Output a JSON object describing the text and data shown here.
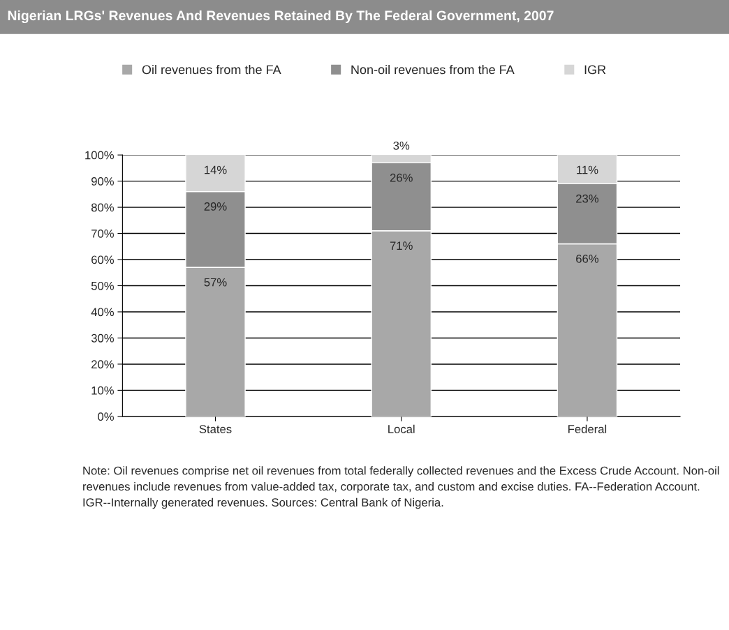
{
  "chart_data": {
    "type": "bar",
    "stacked": true,
    "title": "Nigerian LRGs' Revenues And Revenues Retained By The Federal Government, 2007",
    "categories": [
      "States",
      "Local",
      "Federal"
    ],
    "series": [
      {
        "name": "Oil revenues from the FA",
        "color": "#a8a8a8",
        "values": [
          57,
          71,
          66
        ],
        "value_labels": [
          "57%",
          "71%",
          "66%"
        ]
      },
      {
        "name": "Non-oil revenues from the FA",
        "color": "#8f8f8f",
        "values": [
          29,
          26,
          23
        ],
        "value_labels": [
          "29%",
          "26%",
          "23%"
        ]
      },
      {
        "name": "IGR",
        "color": "#d6d6d6",
        "values": [
          14,
          3,
          11
        ],
        "value_labels": [
          "14%",
          "3%",
          "11%"
        ]
      }
    ],
    "ylim": [
      0,
      100
    ],
    "yticks": [
      {
        "value": 0,
        "label": "0%"
      },
      {
        "value": 10,
        "label": "10%"
      },
      {
        "value": 20,
        "label": "20%"
      },
      {
        "value": 30,
        "label": "30%"
      },
      {
        "value": 40,
        "label": "40%"
      },
      {
        "value": 50,
        "label": "50%"
      },
      {
        "value": 60,
        "label": "60%"
      },
      {
        "value": 70,
        "label": "70%"
      },
      {
        "value": 80,
        "label": "80%"
      },
      {
        "value": 90,
        "label": "90%"
      },
      {
        "value": 100,
        "label": "100%"
      }
    ],
    "grid": "y",
    "legend": "top",
    "annotations": [
      "Note: Oil revenues comprise net oil revenues from total federally collected revenues and the Excess Crude Account. Non-oil revenues include revenues from value-added tax, corporate tax, and custom and excise duties. FA--Federation Account. IGR--Internally generated revenues. Sources: Central Bank of Nigeria."
    ]
  }
}
